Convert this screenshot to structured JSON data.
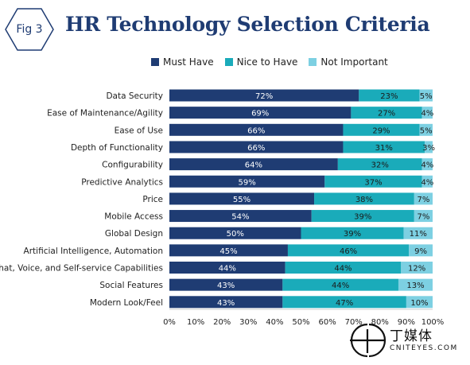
{
  "figure": {
    "badge_label": "Fig 3",
    "title": "HR Technology Selection Criteria"
  },
  "colors": {
    "title": "#1f3c73",
    "must_have": "#1f3c73",
    "nice_to_have": "#1aabba",
    "not_important": "#7dd0e2"
  },
  "logo": {
    "cn_text": "丁媒体",
    "en_text": "CNITEYES.COM"
  },
  "chart_data": {
    "type": "bar",
    "orientation": "horizontal",
    "stacked": true,
    "title": "HR Technology Selection Criteria",
    "xlim": [
      0,
      100
    ],
    "x_tick_labels": [
      "0%",
      "10%",
      "20%",
      "30%",
      "40%",
      "50%",
      "60%",
      "70%",
      "80%",
      "90%",
      "100%"
    ],
    "legend_position": "top",
    "grid": false,
    "categories": [
      "Data Security",
      "Ease of Maintenance/Agility",
      "Ease of Use",
      "Depth of Functionality",
      "Configurability",
      "Predictive Analytics",
      "Price",
      "Mobile Access",
      "Global Design",
      "Artificial Intelligence, Automation",
      "Chat, Voice, and Self-service Capabilities",
      "Social Features",
      "Modern Look/Feel"
    ],
    "series": [
      {
        "name": "Must Have",
        "color": "#1f3c73",
        "values": [
          72,
          69,
          66,
          66,
          64,
          59,
          55,
          54,
          50,
          45,
          44,
          43,
          43
        ]
      },
      {
        "name": "Nice to Have",
        "color": "#1aabba",
        "values": [
          23,
          27,
          29,
          31,
          32,
          37,
          38,
          39,
          39,
          46,
          44,
          44,
          47
        ]
      },
      {
        "name": "Not Important",
        "color": "#7dd0e2",
        "values": [
          5,
          4,
          5,
          3,
          4,
          4,
          7,
          7,
          11,
          9,
          12,
          13,
          10
        ]
      }
    ]
  }
}
